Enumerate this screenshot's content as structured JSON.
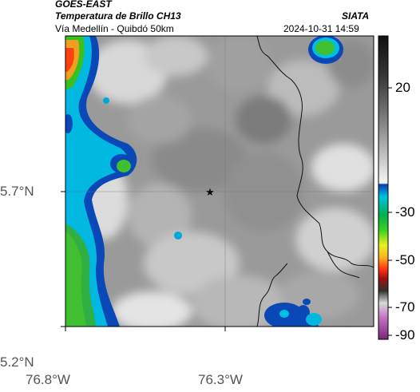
{
  "header": {
    "satellite": "GOES-EAST",
    "product": "Temperatura de Brillo CH13",
    "org": "SIATA",
    "region": "Vía Medellín - Quibdó 50km",
    "datetime": "2024-10-31 14:59"
  },
  "map": {
    "lat_labels": [
      "5.7°N",
      "5.2°N"
    ],
    "lon_labels": [
      "76.8°W",
      "76.3°W"
    ],
    "marker": "star-icon"
  },
  "colorbar": {
    "labels": [
      "20",
      "-30",
      "-50",
      "-70",
      "-90"
    ]
  },
  "colors": {
    "cold_cloud_blue": "#0a48b8",
    "cyan": "#00c8e8",
    "green": "#20b020",
    "yellow": "#f0f020",
    "orange": "#ff6020",
    "warm_gray": "#888888"
  }
}
